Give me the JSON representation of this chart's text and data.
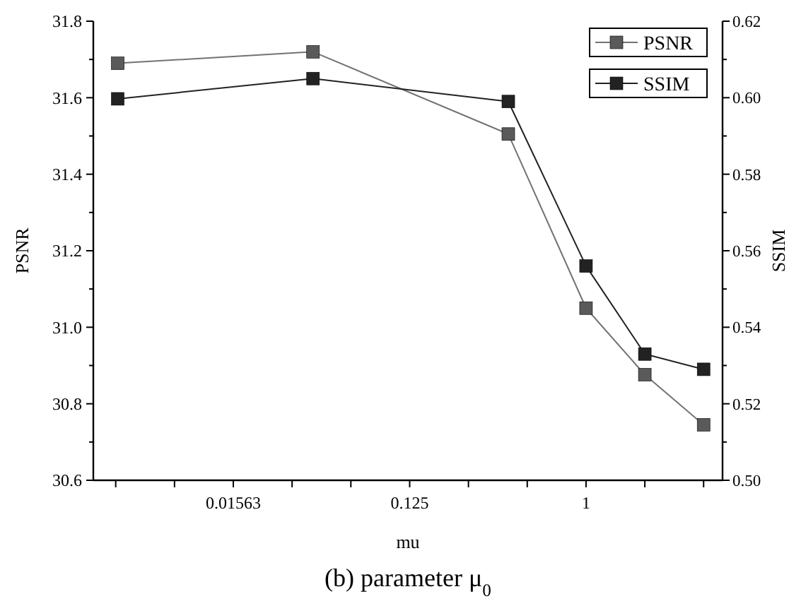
{
  "chart_data": {
    "type": "line",
    "title": "(b)  parameter μ$_{0}$",
    "xlabel": "mu",
    "ylabel": "PSNR",
    "y2label": "SSIM",
    "log": "x",
    "x": [
      0.004,
      0.04,
      0.4,
      1,
      2,
      4
    ],
    "series": [
      {
        "name": "PSNR",
        "color": "#5a5a5a",
        "values": [
          31.69,
          31.72,
          31.505,
          31.05,
          30.876,
          30.745
        ]
      },
      {
        "name": "SSIM",
        "color": "#222222",
        "axis": "y2",
        "values": [
          0.5997,
          0.605,
          0.599,
          0.556,
          0.533,
          0.529
        ]
      }
    ],
    "xlim": [
      0.003,
      5
    ],
    "xticks": [
      {
        "value": 0.00390625,
        "label": null
      },
      {
        "value": 0.0078125,
        "label": null
      },
      {
        "value": 0.015625,
        "label": "0.01563"
      },
      {
        "value": 0.03125,
        "label": null
      },
      {
        "value": 0.0625,
        "label": null
      },
      {
        "value": 0.125,
        "label": "0.125"
      },
      {
        "value": 0.25,
        "label": null
      },
      {
        "value": 0.5,
        "label": null
      },
      1,
      {
        "value": 2,
        "label": null
      },
      {
        "value": 4,
        "label": null
      }
    ],
    "ylim": [
      30.6,
      31.8
    ],
    "yticks": [
      30.6,
      {
        "value": 30.7,
        "label": null
      },
      30.8,
      {
        "value": 30.9,
        "label": null
      },
      {
        "value": 31.0,
        "label": "31.0"
      },
      {
        "value": 31.1,
        "label": null
      },
      31.2,
      {
        "value": 31.3,
        "label": null
      },
      31.4,
      {
        "value": 31.5,
        "label": null
      },
      31.6,
      {
        "value": 31.7,
        "label": null
      },
      31.8
    ],
    "y2lim": [
      0.5,
      0.62
    ],
    "y2ticks": [
      {
        "value": 0.5,
        "label": "0.50"
      },
      {
        "value": 0.51,
        "label": null
      },
      0.52,
      {
        "value": 0.53,
        "label": null
      },
      0.54,
      {
        "value": 0.55,
        "label": null
      },
      0.56,
      {
        "value": 0.57,
        "label": null
      },
      0.58,
      {
        "value": 0.59,
        "label": null
      },
      {
        "value": 0.6,
        "label": "0.60"
      },
      {
        "value": 0.61,
        "label": null
      },
      0.62
    ],
    "marker": "square",
    "line_style": "solid",
    "grid": false,
    "legend": "top right"
  }
}
